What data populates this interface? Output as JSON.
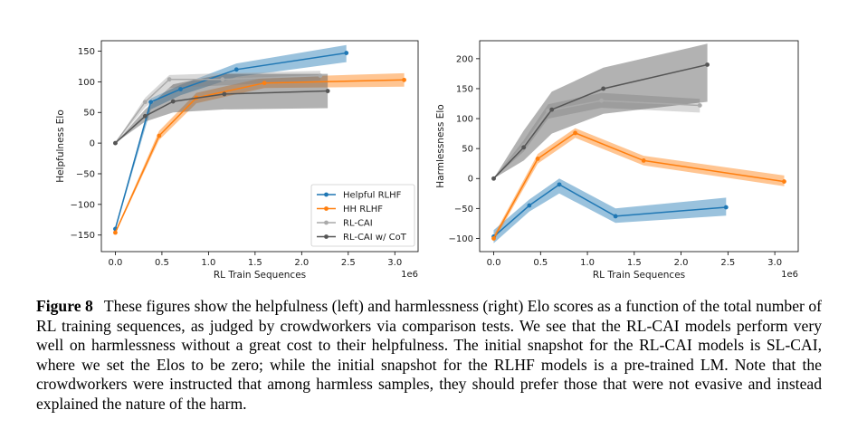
{
  "chart_data": [
    {
      "type": "line",
      "xlabel": "RL Train Sequences",
      "ylabel": "Helpfulness Elo",
      "x_offset_label": "1e6",
      "xlim": [
        -0.15,
        3.25
      ],
      "ylim": [
        -177,
        167
      ],
      "xticks": [
        0.0,
        0.5,
        1.0,
        1.5,
        2.0,
        2.5,
        3.0
      ],
      "xtick_labels": [
        "0.0",
        "0.5",
        "1.0",
        "1.5",
        "2.0",
        "2.5",
        "3.0"
      ],
      "yticks": [
        150,
        100,
        50,
        0,
        -50,
        -100,
        -150
      ],
      "ytick_labels": [
        "150",
        "100",
        "50",
        "0",
        "−50",
        "−100",
        "−150"
      ],
      "legend": "lower-right",
      "grid": false,
      "series": [
        {
          "name": "Helpful RLHF",
          "color": "#1f77b4",
          "x": [
            0.0,
            0.38,
            0.7,
            1.3,
            2.48
          ],
          "y": [
            -140,
            67,
            88,
            120,
            147
          ],
          "lower": [
            -142,
            55,
            78,
            108,
            132
          ],
          "upper": [
            -138,
            73,
            95,
            130,
            160
          ]
        },
        {
          "name": "HH RLHF",
          "color": "#ff7f0e",
          "x": [
            0.0,
            0.47,
            0.87,
            1.6,
            3.1
          ],
          "y": [
            -146,
            12,
            74,
            98,
            103
          ],
          "lower": [
            -148,
            5,
            65,
            90,
            92
          ],
          "upper": [
            -144,
            20,
            82,
            107,
            114
          ]
        },
        {
          "name": "RL-CAI",
          "color": "#aaaaaa",
          "x": [
            0.0,
            0.32,
            0.58,
            1.15,
            2.2
          ],
          "y": [
            0,
            67,
            104,
            104,
            110
          ],
          "lower": [
            0,
            58,
            90,
            94,
            102
          ],
          "upper": [
            0,
            74,
            111,
            114,
            118
          ]
        },
        {
          "name": "RL-CAI w/ CoT",
          "color": "#555555",
          "x": [
            0.0,
            0.32,
            0.62,
            1.17,
            2.28
          ],
          "y": [
            0,
            44,
            68,
            80,
            85
          ],
          "lower": [
            0,
            35,
            50,
            55,
            57
          ],
          "upper": [
            0,
            55,
            96,
            113,
            113
          ]
        }
      ]
    },
    {
      "type": "line",
      "xlabel": "RL Train Sequences",
      "ylabel": "Harmlessness Elo",
      "x_offset_label": "1e6",
      "xlim": [
        -0.15,
        3.25
      ],
      "ylim": [
        -122,
        230
      ],
      "xticks": [
        0.0,
        0.5,
        1.0,
        1.5,
        2.0,
        2.5,
        3.0
      ],
      "xtick_labels": [
        "0.0",
        "0.5",
        "1.0",
        "1.5",
        "2.0",
        "2.5",
        "3.0"
      ],
      "yticks": [
        200,
        150,
        100,
        50,
        0,
        -50,
        -100
      ],
      "ytick_labels": [
        "200",
        "150",
        "100",
        "50",
        "0",
        "−50",
        "−100"
      ],
      "grid": false,
      "series": [
        {
          "name": "Helpful RLHF",
          "color": "#1f77b4",
          "x": [
            0.0,
            0.38,
            0.7,
            1.3,
            2.48
          ],
          "y": [
            -97,
            -45,
            -10,
            -63,
            -48
          ],
          "lower": [
            -108,
            -55,
            -25,
            -74,
            -62
          ],
          "upper": [
            -86,
            -35,
            0,
            -50,
            -32
          ]
        },
        {
          "name": "HH RLHF",
          "color": "#ff7f0e",
          "x": [
            0.0,
            0.47,
            0.87,
            1.6,
            3.1
          ],
          "y": [
            -100,
            33,
            76,
            30,
            -5
          ],
          "lower": [
            -105,
            25,
            68,
            22,
            -13
          ],
          "upper": [
            -95,
            41,
            84,
            38,
            5
          ]
        },
        {
          "name": "RL-CAI",
          "color": "#aaaaaa",
          "x": [
            0.0,
            0.32,
            0.58,
            1.15,
            2.2
          ],
          "y": [
            0,
            55,
            113,
            130,
            122
          ],
          "lower": [
            0,
            45,
            100,
            118,
            110
          ],
          "upper": [
            0,
            64,
            124,
            143,
            133
          ]
        },
        {
          "name": "RL-CAI w/ CoT",
          "color": "#555555",
          "x": [
            0.0,
            0.32,
            0.62,
            1.17,
            2.28
          ],
          "y": [
            0,
            52,
            115,
            150,
            190
          ],
          "lower": [
            0,
            30,
            75,
            108,
            128
          ],
          "upper": [
            0,
            80,
            145,
            185,
            225
          ]
        }
      ]
    }
  ],
  "caption": {
    "label": "Figure 8",
    "text": "These figures show the helpfulness (left) and harmlessness (right) Elo scores as a function of the total number of RL training sequences, as judged by crowdworkers via comparison tests. We see that the RL-CAI models perform very well on harmlessness without a great cost to their helpfulness. The initial snapshot for the RL-CAI models is SL-CAI, where we set the Elos to be zero; while the initial snapshot for the RLHF models is a pre-trained LM. Note that the crowdworkers were instructed that among harmless samples, they should prefer those that were not evasive and instead explained the nature of the harm."
  }
}
